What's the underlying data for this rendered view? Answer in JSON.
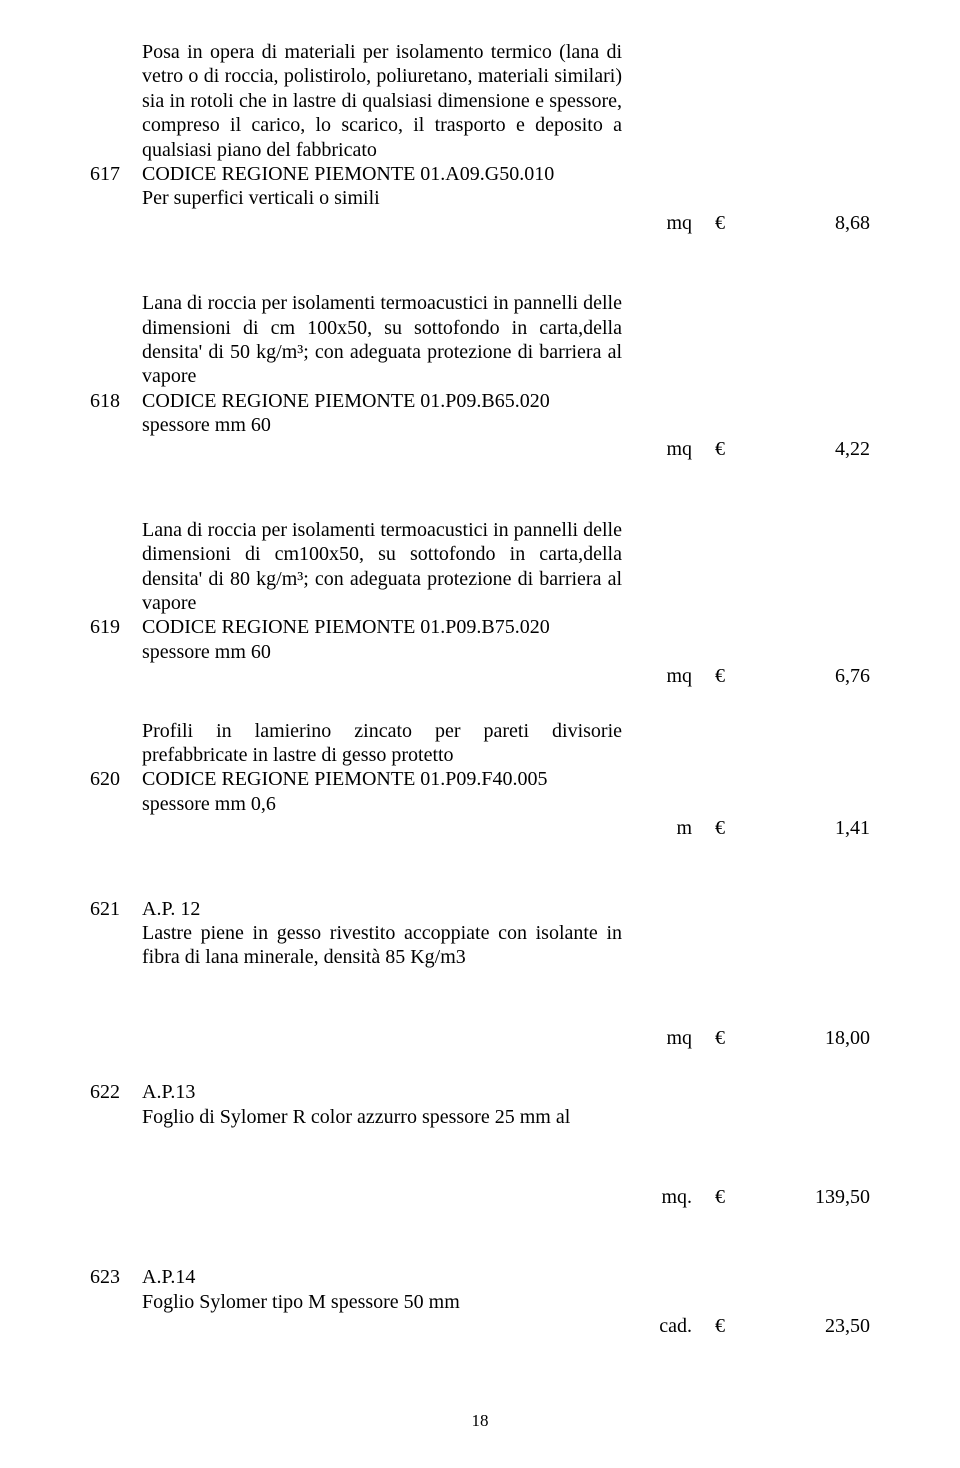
{
  "euro": "€",
  "pageNumber": "18",
  "items": {
    "i617": {
      "num": "617",
      "desc": "Posa in opera di materiali per isolamento termico (lana di vetro o di roccia, polistirolo, poliuretano, materiali similari) sia in rotoli che in lastre di qualsiasi dimensione e spessore, compreso il carico, lo scarico, il trasporto e deposito a qualsiasi piano del fabbricato",
      "code": "CODICE REGIONE PIEMONTE  01.A09.G50.010",
      "sub": "Per superfici verticali o simili",
      "unit": "mq",
      "price": "8,68"
    },
    "i618": {
      "num": "618",
      "desc": "Lana di roccia per isolamenti termoacustici in pannelli delle dimensioni di cm 100x50, su sottofondo in carta,della densita' di 50 kg/m³; con adeguata protezione di barriera al vapore",
      "code": "CODICE REGIONE PIEMONTE  01.P09.B65.020",
      "sub": "spessore mm 60",
      "unit": "mq",
      "price": "4,22"
    },
    "i619": {
      "num": "619",
      "desc": "Lana di roccia per isolamenti termoacustici in pannelli delle dimensioni di cm100x50, su sottofondo in carta,della densita' di 80 kg/m³; con adeguata protezione di barriera al vapore",
      "code": "CODICE REGIONE PIEMONTE  01.P09.B75.020",
      "sub": "spessore mm 60",
      "unit": "mq",
      "price": "6,76"
    },
    "i620": {
      "num": "620",
      "desc": "Profili in lamierino zincato per pareti divisorie prefabbricate in lastre di gesso protetto",
      "code": "CODICE REGIONE PIEMONTE  01.P09.F40.005",
      "sub": "spessore mm 0,6",
      "unit": "m",
      "price": "1,41"
    },
    "i621": {
      "num": "621",
      "code": "A.P. 12",
      "desc": "Lastre piene in gesso rivestito accoppiate con isolante in fibra di lana minerale, densità 85 Kg/m3",
      "unit": "mq",
      "price": "18,00"
    },
    "i622": {
      "num": "622",
      "code": "A.P.13",
      "desc": "Foglio di Sylomer R color azzurro spessore 25 mm al",
      "unit": "mq.",
      "price": "139,50"
    },
    "i623": {
      "num": "623",
      "code": "A.P.14",
      "desc": "Foglio  Sylomer tipo M spessore 50 mm",
      "unit": "cad.",
      "price": "23,50"
    }
  }
}
